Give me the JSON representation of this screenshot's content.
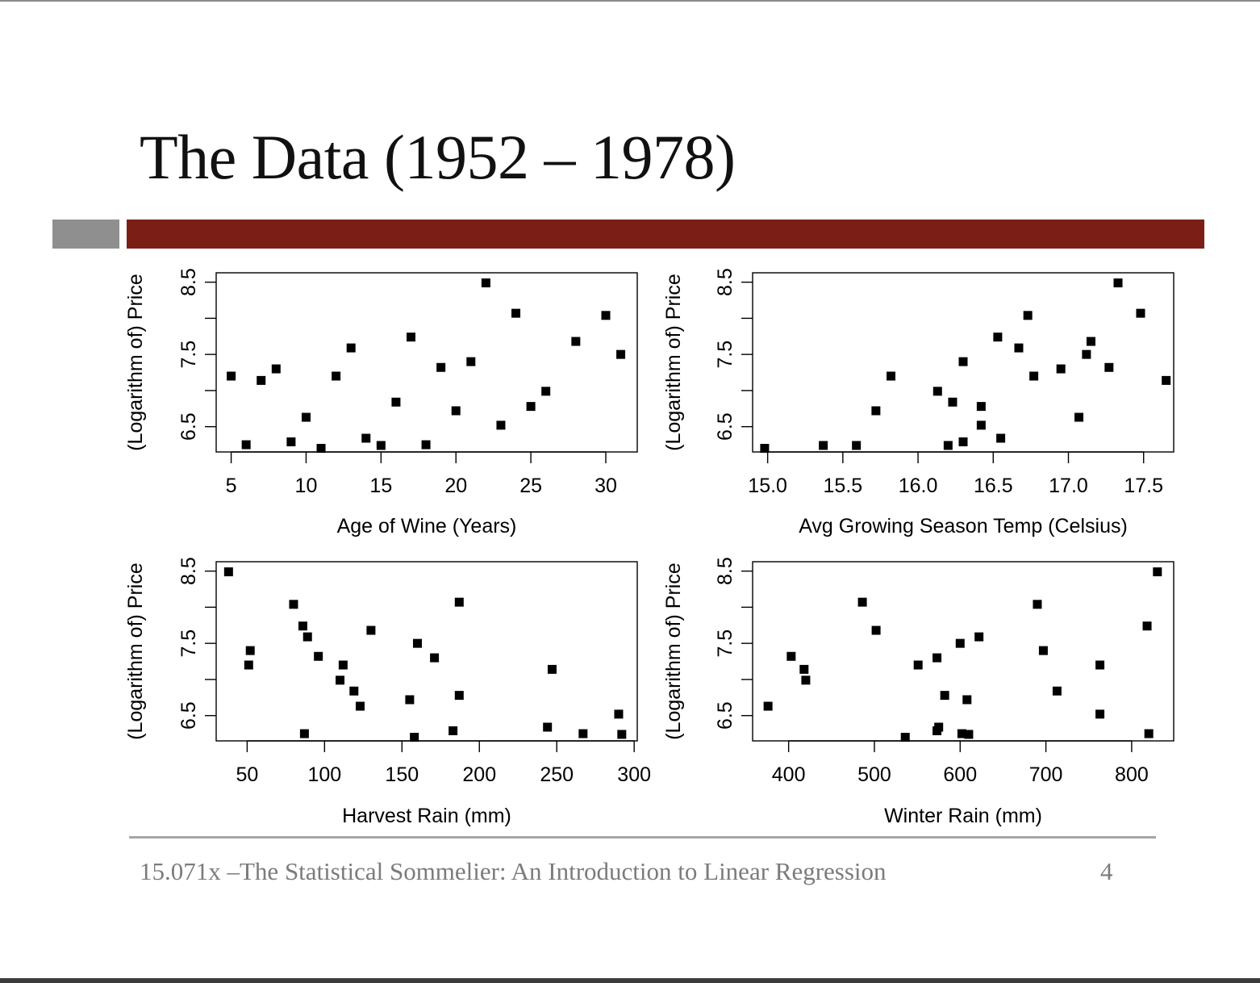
{
  "slide": {
    "title": "The Data (1952 – 1978)",
    "footer": "15.071x –The Statistical Sommelier: An Introduction to Linear Regression",
    "page_number": "4",
    "colors": {
      "accent_bar": "#7b1f16",
      "accent_block": "#8f8f8f",
      "footer_text": "#7b7b7b",
      "points": "#000000"
    }
  },
  "chart_data": [
    {
      "type": "scatter",
      "xlabel": "Age of Wine (Years)",
      "ylabel": "(Logarithm of) Price",
      "xlim": [
        4,
        32.1
      ],
      "ylim": [
        6.15,
        8.63
      ],
      "xticks": [
        5,
        10,
        15,
        20,
        25,
        30
      ],
      "xtick_labels": [
        "5",
        "10",
        "15",
        "20",
        "25",
        "30"
      ],
      "yticks": [
        6.5,
        7,
        7.5,
        8,
        8.5
      ],
      "ytick_labels": [
        "6.5",
        "",
        "7.5",
        "",
        "8.5"
      ],
      "points": [
        [
          5,
          7.2
        ],
        [
          6,
          6.25
        ],
        [
          7,
          7.14
        ],
        [
          8,
          7.3
        ],
        [
          9,
          6.29
        ],
        [
          10,
          6.63
        ],
        [
          11,
          6.2
        ],
        [
          12,
          7.2
        ],
        [
          13,
          7.59
        ],
        [
          14,
          6.34
        ],
        [
          15,
          6.24
        ],
        [
          16,
          6.84
        ],
        [
          17,
          7.74
        ],
        [
          18,
          6.25
        ],
        [
          19,
          7.32
        ],
        [
          20,
          6.72
        ],
        [
          21,
          7.4
        ],
        [
          22,
          8.49
        ],
        [
          23,
          6.52
        ],
        [
          24,
          8.07
        ],
        [
          25,
          6.78
        ],
        [
          26,
          6.99
        ],
        [
          28,
          7.68
        ],
        [
          30,
          8.04
        ],
        [
          31,
          7.5
        ]
      ]
    },
    {
      "type": "scatter",
      "xlabel": "Avg Growing Season Temp (Celsius)",
      "ylabel": "(Logarithm of) Price",
      "xlim": [
        14.9,
        17.7
      ],
      "ylim": [
        6.15,
        8.63
      ],
      "xticks": [
        15.0,
        15.5,
        16.0,
        16.5,
        17.0,
        17.5
      ],
      "xtick_labels": [
        "15.0",
        "15.5",
        "16.0",
        "16.5",
        "17.0",
        "17.5"
      ],
      "yticks": [
        6.5,
        7,
        7.5,
        8,
        8.5
      ],
      "ytick_labels": [
        "6.5",
        "",
        "7.5",
        "",
        "8.5"
      ],
      "points": [
        [
          14.98,
          6.2
        ],
        [
          15.37,
          6.24
        ],
        [
          15.59,
          6.24
        ],
        [
          15.72,
          6.72
        ],
        [
          15.82,
          7.2
        ],
        [
          16.13,
          6.99
        ],
        [
          16.2,
          6.24
        ],
        [
          16.23,
          6.84
        ],
        [
          16.3,
          7.4
        ],
        [
          16.3,
          6.29
        ],
        [
          16.42,
          6.78
        ],
        [
          16.42,
          6.52
        ],
        [
          16.53,
          7.74
        ],
        [
          16.55,
          6.34
        ],
        [
          16.67,
          7.59
        ],
        [
          16.73,
          8.04
        ],
        [
          16.77,
          7.2
        ],
        [
          16.95,
          7.3
        ],
        [
          17.07,
          6.63
        ],
        [
          17.12,
          7.5
        ],
        [
          17.15,
          7.68
        ],
        [
          17.27,
          7.32
        ],
        [
          17.33,
          8.49
        ],
        [
          17.48,
          8.07
        ],
        [
          17.65,
          7.14
        ]
      ]
    },
    {
      "type": "scatter",
      "xlabel": "Harvest Rain (mm)",
      "ylabel": "(Logarithm of) Price",
      "xlim": [
        30,
        302
      ],
      "ylim": [
        6.15,
        8.63
      ],
      "xticks": [
        50,
        100,
        150,
        200,
        250,
        300
      ],
      "xtick_labels": [
        "50",
        "100",
        "150",
        "200",
        "250",
        "300"
      ],
      "yticks": [
        6.5,
        7,
        7.5,
        8,
        8.5
      ],
      "ytick_labels": [
        "6.5",
        "",
        "7.5",
        "",
        "8.5"
      ],
      "points": [
        [
          38,
          8.49
        ],
        [
          51,
          7.2
        ],
        [
          52,
          7.4
        ],
        [
          80,
          8.04
        ],
        [
          86,
          7.74
        ],
        [
          87,
          6.25
        ],
        [
          89,
          7.59
        ],
        [
          96,
          7.32
        ],
        [
          110,
          6.99
        ],
        [
          112,
          7.2
        ],
        [
          119,
          6.84
        ],
        [
          123,
          6.63
        ],
        [
          130,
          7.68
        ],
        [
          155,
          6.72
        ],
        [
          158,
          6.2
        ],
        [
          160,
          7.5
        ],
        [
          171,
          7.3
        ],
        [
          183,
          6.29
        ],
        [
          187,
          8.07
        ],
        [
          187,
          6.78
        ],
        [
          244,
          6.34
        ],
        [
          247,
          7.14
        ],
        [
          267,
          6.25
        ],
        [
          290,
          6.52
        ],
        [
          292,
          6.24
        ]
      ]
    },
    {
      "type": "scatter",
      "xlabel": "Winter Rain (mm)",
      "ylabel": "(Logarithm of) Price",
      "xlim": [
        358,
        849
      ],
      "ylim": [
        6.15,
        8.63
      ],
      "xticks": [
        400,
        500,
        600,
        700,
        800
      ],
      "xtick_labels": [
        "400",
        "500",
        "600",
        "700",
        "800"
      ],
      "yticks": [
        6.5,
        7,
        7.5,
        8,
        8.5
      ],
      "ytick_labels": [
        "6.5",
        "",
        "7.5",
        "",
        "8.5"
      ],
      "points": [
        [
          376,
          6.63
        ],
        [
          403,
          7.32
        ],
        [
          418,
          7.14
        ],
        [
          420,
          6.99
        ],
        [
          486,
          8.07
        ],
        [
          502,
          7.68
        ],
        [
          536,
          6.2
        ],
        [
          551,
          7.2
        ],
        [
          573,
          7.3
        ],
        [
          573,
          6.29
        ],
        [
          575,
          6.34
        ],
        [
          582,
          6.78
        ],
        [
          600,
          7.5
        ],
        [
          602,
          6.25
        ],
        [
          608,
          6.72
        ],
        [
          610,
          6.24
        ],
        [
          622,
          7.59
        ],
        [
          690,
          8.04
        ],
        [
          697,
          7.4
        ],
        [
          713,
          6.84
        ],
        [
          763,
          7.2
        ],
        [
          763,
          6.52
        ],
        [
          818,
          7.74
        ],
        [
          820,
          6.25
        ],
        [
          830,
          8.49
        ]
      ]
    }
  ]
}
